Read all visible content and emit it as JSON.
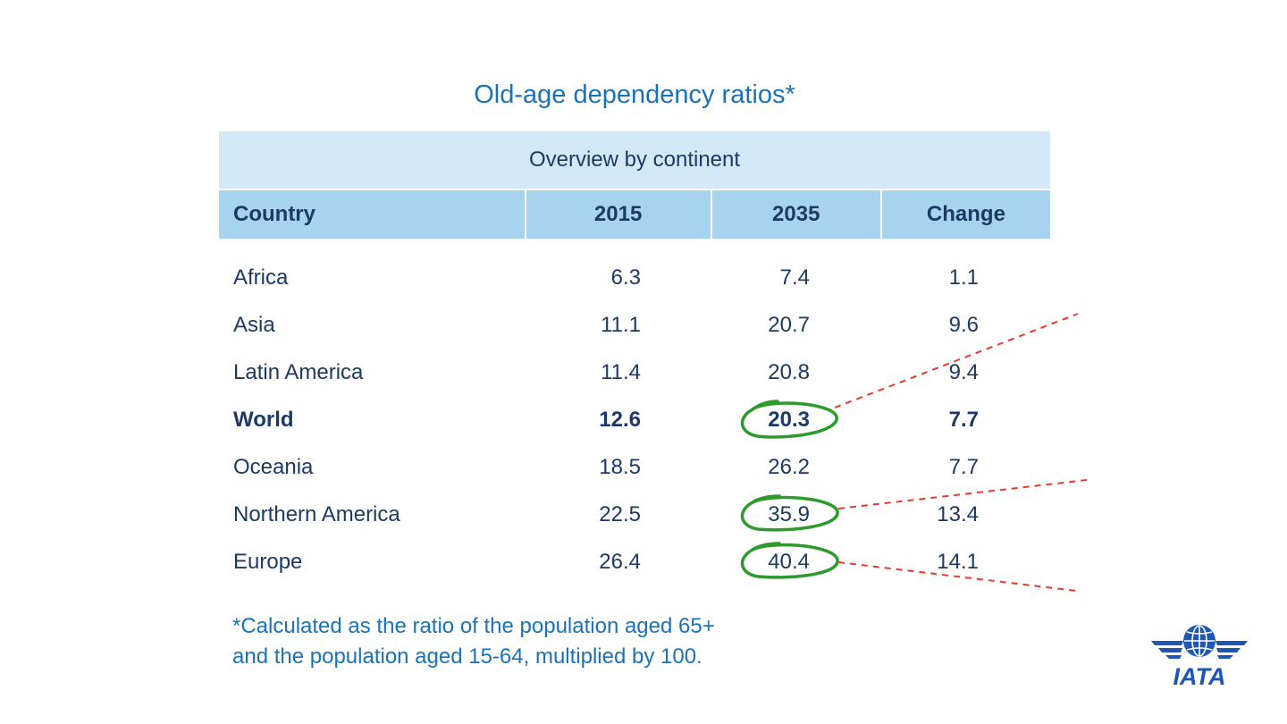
{
  "title": "Old-age dependency ratios*",
  "table": {
    "caption": "Overview by continent",
    "columns": [
      "Country",
      "2015",
      "2035",
      "Change"
    ],
    "rows": [
      {
        "country": "Africa",
        "y2015": "6.3",
        "y2035": "7.4",
        "change": "1.1",
        "bold": false,
        "circled": false
      },
      {
        "country": "Asia",
        "y2015": "11.1",
        "y2035": "20.7",
        "change": "9.6",
        "bold": false,
        "circled": false
      },
      {
        "country": "Latin America",
        "y2015": "11.4",
        "y2035": "20.8",
        "change": "9.4",
        "bold": false,
        "circled": false
      },
      {
        "country": "World",
        "y2015": "12.6",
        "y2035": "20.3",
        "change": "7.7",
        "bold": true,
        "circled": true
      },
      {
        "country": "Oceania",
        "y2015": "18.5",
        "y2035": "26.2",
        "change": "7.7",
        "bold": false,
        "circled": false
      },
      {
        "country": "Northern America",
        "y2015": "22.5",
        "y2035": "35.9",
        "change": "13.4",
        "bold": false,
        "circled": true
      },
      {
        "country": "Europe",
        "y2015": "26.4",
        "y2035": "40.4",
        "change": "14.1",
        "bold": false,
        "circled": true
      }
    ]
  },
  "footnote": {
    "line1": "*Calculated as the ratio of the population aged 65+",
    "line2": "and the population aged 15-64, multiplied by 100."
  },
  "logo": {
    "text": "IATA",
    "icon": "iata-globe-wings-logo"
  },
  "colors": {
    "title": "#1a73b8",
    "header_band": "#d3e9f7",
    "column_header": "#a6d4ee",
    "body_text": "#1c3a63",
    "circle_annotation": "#2e9a2e",
    "dashed_annotation": "#e53b2e"
  }
}
